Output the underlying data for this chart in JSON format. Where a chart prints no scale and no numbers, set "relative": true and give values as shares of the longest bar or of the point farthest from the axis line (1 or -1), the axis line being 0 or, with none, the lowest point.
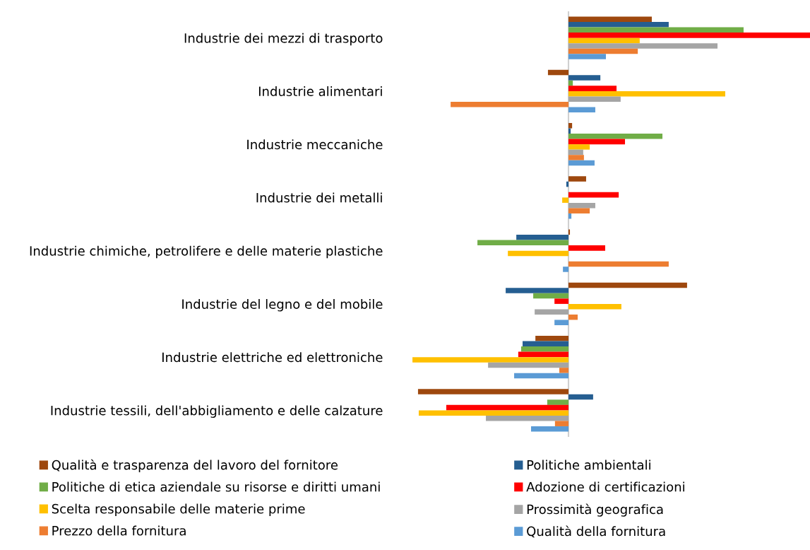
{
  "chart_data": {
    "type": "bar",
    "orientation": "horizontal",
    "relative": true,
    "legend": "bottom",
    "grid": false,
    "categories": [
      "Industrie dei mezzi di trasporto",
      "Industrie alimentari",
      "Industrie meccaniche",
      "Industrie dei metalli",
      "Industrie chimiche, petrolifere e delle materie plastiche",
      "Industrie del legno e del mobile",
      "Industrie elettriche ed elettroniche",
      "Industrie tessili, dell'abbigliamento e delle calzature"
    ],
    "series": [
      {
        "name": "Qualità e trasparenza del lavoro del fornitore",
        "color": "#9e480e",
        "values": [
          0.345,
          -0.085,
          0.015,
          0.073,
          0.006,
          0.491,
          -0.137,
          -0.623
        ]
      },
      {
        "name": "Politiche ambientali",
        "color": "#255e91",
        "values": [
          0.415,
          0.132,
          0.009,
          -0.009,
          -0.216,
          -0.26,
          -0.19,
          0.102
        ]
      },
      {
        "name": "Politiche di etica aziendale su risorse e diritti umani",
        "color": "#70ad47",
        "values": [
          0.725,
          0.018,
          0.389,
          0,
          -0.377,
          -0.146,
          -0.196,
          -0.088
        ]
      },
      {
        "name": "Adozione di certificazioni",
        "color": "#ff0000",
        "values": [
          1.0,
          0.199,
          0.234,
          0.208,
          0.152,
          -0.058,
          -0.208,
          -0.506
        ]
      },
      {
        "name": "Scelta responsabile delle materie prime",
        "color": "#ffc000",
        "values": [
          0.295,
          0.649,
          0.088,
          -0.026,
          -0.251,
          0.219,
          -0.646,
          -0.62
        ]
      },
      {
        "name": "Prossimità geografica",
        "color": "#a5a5a5",
        "values": [
          0.617,
          0.216,
          0.061,
          0.111,
          0,
          -0.14,
          -0.333,
          -0.342
        ]
      },
      {
        "name": "Prezzo della fornitura",
        "color": "#ed7d31",
        "values": [
          0.287,
          -0.488,
          0.064,
          0.088,
          0.415,
          0.038,
          -0.038,
          -0.056
        ]
      },
      {
        "name": "Qualità della fornitura",
        "color": "#5b9bd5",
        "values": [
          0.155,
          0.111,
          0.108,
          0.012,
          -0.023,
          -0.058,
          -0.225,
          -0.155
        ]
      }
    ]
  }
}
